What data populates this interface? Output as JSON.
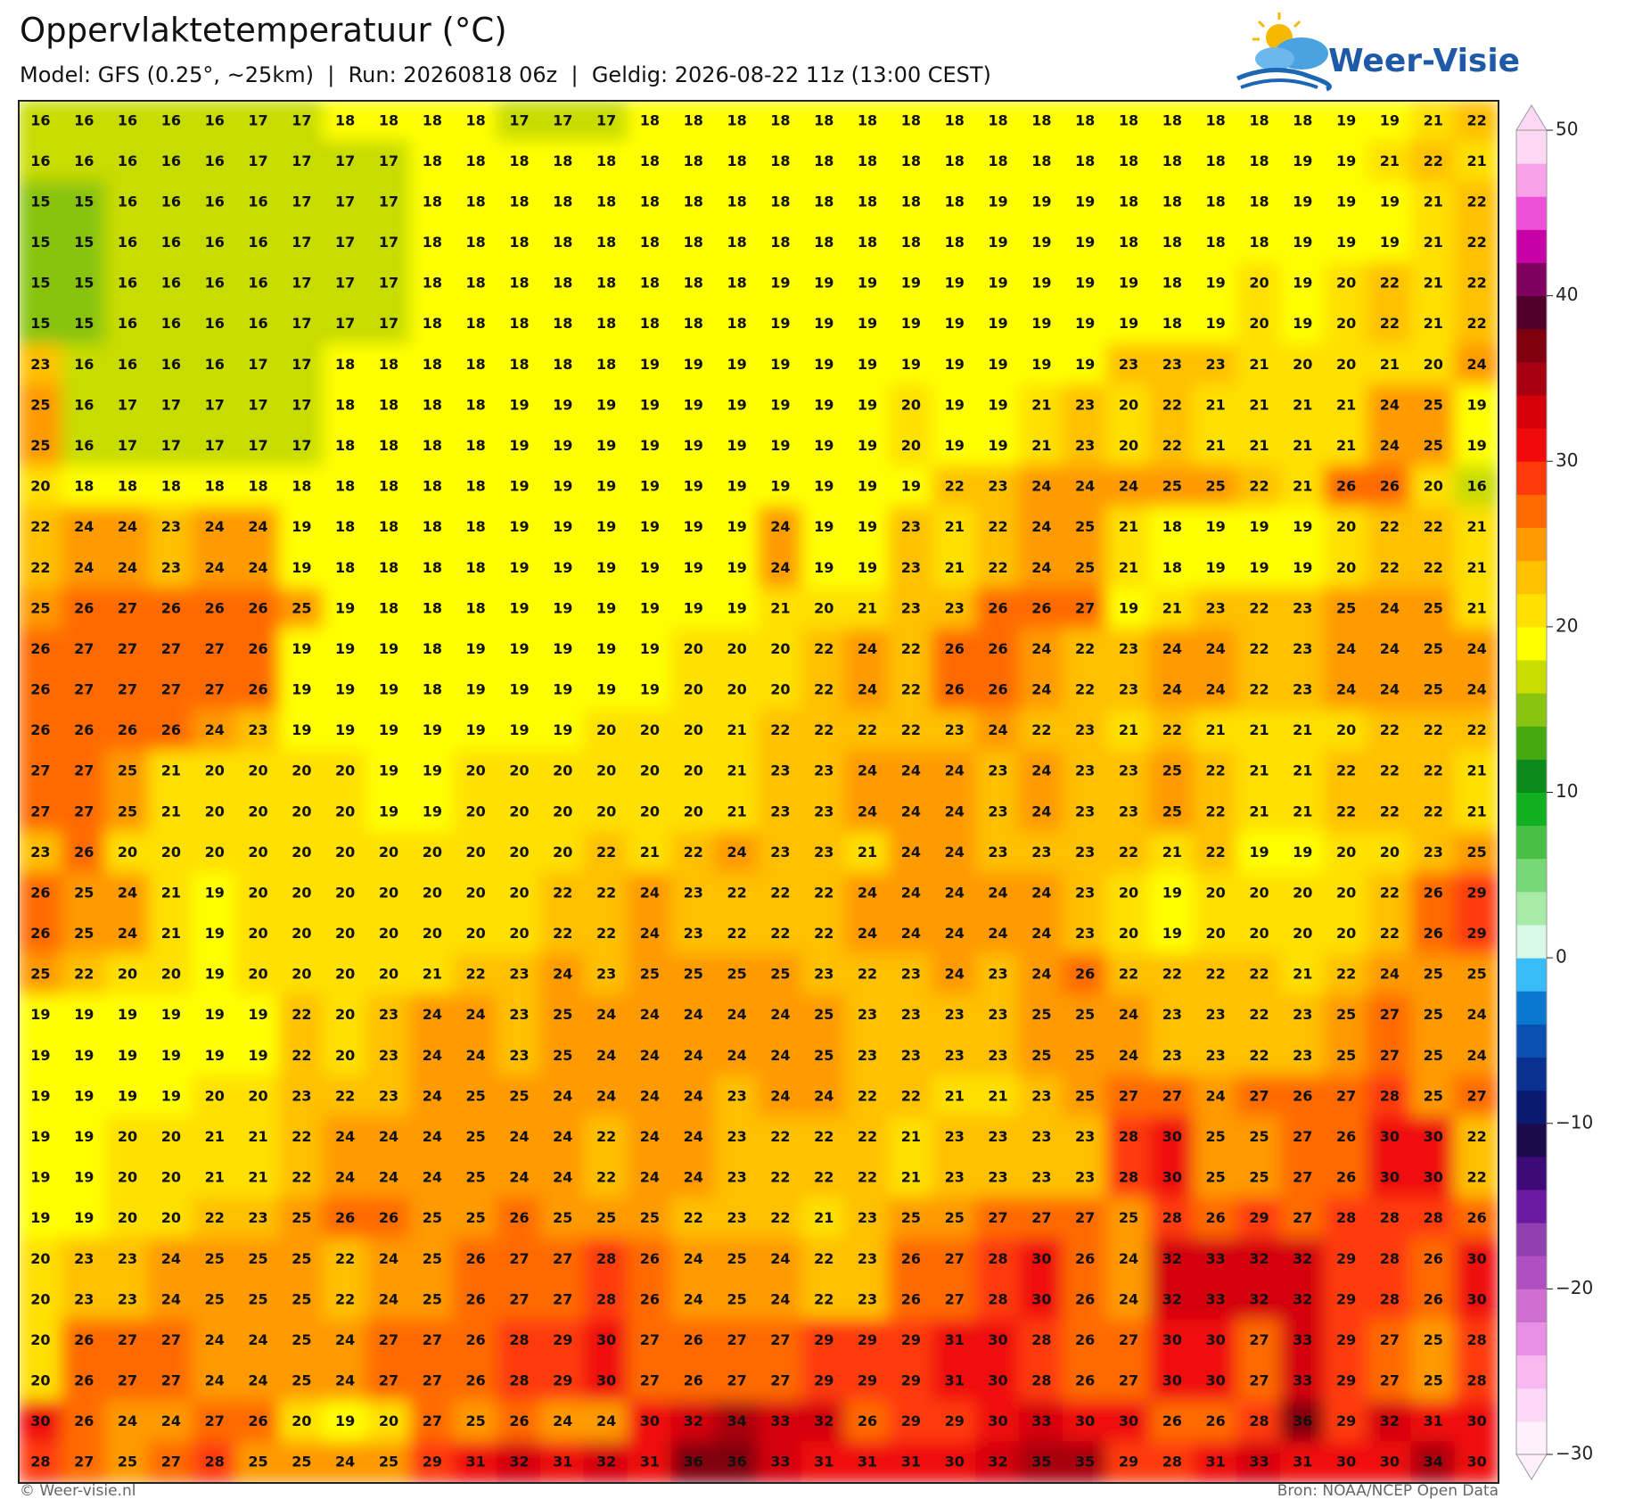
{
  "header": {
    "title": "Oppervlaktetemperatuur (°C)",
    "subtitle": "Model: GFS (0.25°, ~25km)  |  Run: 20260818 06z  |  Geldig: 2026-08-22 11z (13:00 CEST)",
    "logo": "Weer-Visie"
  },
  "chart_data": {
    "type": "grid",
    "values": [
      [
        16,
        16,
        16,
        16,
        16,
        17,
        17,
        18,
        18,
        18,
        18,
        17,
        17,
        17,
        18,
        18,
        18,
        18,
        18,
        18,
        18,
        18,
        18,
        18,
        18,
        18,
        18,
        18,
        18,
        18,
        19,
        19,
        21,
        22
      ],
      [
        16,
        16,
        16,
        16,
        16,
        17,
        17,
        17,
        17,
        18,
        18,
        18,
        18,
        18,
        18,
        18,
        18,
        18,
        18,
        18,
        18,
        18,
        18,
        18,
        18,
        18,
        18,
        18,
        18,
        19,
        19,
        21,
        22,
        21
      ],
      [
        15,
        15,
        16,
        16,
        16,
        16,
        17,
        17,
        17,
        18,
        18,
        18,
        18,
        18,
        18,
        18,
        18,
        18,
        18,
        18,
        18,
        18,
        19,
        19,
        19,
        18,
        18,
        18,
        18,
        19,
        19,
        19,
        21,
        22
      ],
      [
        15,
        15,
        16,
        16,
        16,
        16,
        17,
        17,
        17,
        18,
        18,
        18,
        18,
        18,
        18,
        18,
        18,
        18,
        18,
        18,
        18,
        18,
        19,
        19,
        19,
        18,
        18,
        18,
        18,
        19,
        19,
        19,
        21,
        22
      ],
      [
        15,
        15,
        16,
        16,
        16,
        16,
        17,
        17,
        17,
        18,
        18,
        18,
        18,
        18,
        18,
        18,
        18,
        19,
        19,
        19,
        19,
        19,
        19,
        19,
        19,
        19,
        18,
        19,
        20,
        19,
        20,
        22,
        21,
        22
      ],
      [
        15,
        15,
        16,
        16,
        16,
        16,
        17,
        17,
        17,
        18,
        18,
        18,
        18,
        18,
        18,
        18,
        18,
        19,
        19,
        19,
        19,
        19,
        19,
        19,
        19,
        19,
        18,
        19,
        20,
        19,
        20,
        22,
        21,
        22
      ],
      [
        23,
        16,
        16,
        16,
        16,
        17,
        17,
        18,
        18,
        18,
        18,
        18,
        18,
        18,
        19,
        19,
        19,
        19,
        19,
        19,
        19,
        19,
        19,
        19,
        19,
        23,
        23,
        23,
        21,
        20,
        20,
        21,
        20,
        24
      ],
      [
        25,
        16,
        17,
        17,
        17,
        17,
        17,
        18,
        18,
        18,
        18,
        19,
        19,
        19,
        19,
        19,
        19,
        19,
        19,
        19,
        20,
        19,
        19,
        21,
        23,
        20,
        22,
        21,
        21,
        21,
        21,
        24,
        25,
        19
      ],
      [
        25,
        16,
        17,
        17,
        17,
        17,
        17,
        18,
        18,
        18,
        18,
        19,
        19,
        19,
        19,
        19,
        19,
        19,
        19,
        19,
        20,
        19,
        19,
        21,
        23,
        20,
        22,
        21,
        21,
        21,
        21,
        24,
        25,
        19
      ],
      [
        20,
        18,
        18,
        18,
        18,
        18,
        18,
        18,
        18,
        18,
        18,
        19,
        19,
        19,
        19,
        19,
        19,
        19,
        19,
        19,
        19,
        22,
        23,
        24,
        24,
        24,
        25,
        25,
        22,
        21,
        26,
        26,
        20,
        16
      ],
      [
        22,
        24,
        24,
        23,
        24,
        24,
        19,
        18,
        18,
        18,
        18,
        19,
        19,
        19,
        19,
        19,
        19,
        24,
        19,
        19,
        23,
        21,
        22,
        24,
        25,
        21,
        18,
        19,
        19,
        19,
        20,
        22,
        22,
        21
      ],
      [
        22,
        24,
        24,
        23,
        24,
        24,
        19,
        18,
        18,
        18,
        18,
        19,
        19,
        19,
        19,
        19,
        19,
        24,
        19,
        19,
        23,
        21,
        22,
        24,
        25,
        21,
        18,
        19,
        19,
        19,
        20,
        22,
        22,
        21
      ],
      [
        25,
        26,
        27,
        26,
        26,
        26,
        25,
        19,
        18,
        18,
        18,
        19,
        19,
        19,
        19,
        19,
        19,
        21,
        20,
        21,
        23,
        23,
        26,
        26,
        27,
        19,
        21,
        23,
        22,
        23,
        25,
        24,
        25,
        21
      ],
      [
        26,
        27,
        27,
        27,
        27,
        26,
        19,
        19,
        19,
        18,
        19,
        19,
        19,
        19,
        19,
        20,
        20,
        20,
        22,
        24,
        22,
        26,
        26,
        24,
        22,
        23,
        24,
        24,
        22,
        23,
        24,
        24,
        25,
        24
      ],
      [
        26,
        27,
        27,
        27,
        27,
        26,
        19,
        19,
        19,
        18,
        19,
        19,
        19,
        19,
        19,
        20,
        20,
        20,
        22,
        24,
        22,
        26,
        26,
        24,
        22,
        23,
        24,
        24,
        22,
        23,
        24,
        24,
        25,
        24
      ],
      [
        26,
        26,
        26,
        26,
        24,
        23,
        19,
        19,
        19,
        19,
        19,
        19,
        19,
        20,
        20,
        20,
        21,
        22,
        22,
        22,
        22,
        23,
        24,
        22,
        23,
        21,
        22,
        21,
        21,
        21,
        20,
        22,
        22,
        22
      ],
      [
        27,
        27,
        25,
        21,
        20,
        20,
        20,
        20,
        19,
        19,
        20,
        20,
        20,
        20,
        20,
        20,
        21,
        23,
        23,
        24,
        24,
        24,
        23,
        24,
        23,
        23,
        25,
        22,
        21,
        21,
        22,
        22,
        22,
        21
      ],
      [
        27,
        27,
        25,
        21,
        20,
        20,
        20,
        20,
        19,
        19,
        20,
        20,
        20,
        20,
        20,
        20,
        21,
        23,
        23,
        24,
        24,
        24,
        23,
        24,
        23,
        23,
        25,
        22,
        21,
        21,
        22,
        22,
        22,
        21
      ],
      [
        23,
        26,
        20,
        20,
        20,
        20,
        20,
        20,
        20,
        20,
        20,
        20,
        20,
        22,
        21,
        22,
        24,
        23,
        23,
        21,
        24,
        24,
        23,
        23,
        23,
        22,
        21,
        22,
        19,
        19,
        20,
        20,
        23,
        25
      ],
      [
        26,
        25,
        24,
        21,
        19,
        20,
        20,
        20,
        20,
        20,
        20,
        20,
        22,
        22,
        24,
        23,
        22,
        22,
        22,
        24,
        24,
        24,
        24,
        24,
        23,
        20,
        19,
        20,
        20,
        20,
        20,
        22,
        26,
        29
      ],
      [
        26,
        25,
        24,
        21,
        19,
        20,
        20,
        20,
        20,
        20,
        20,
        20,
        22,
        22,
        24,
        23,
        22,
        22,
        22,
        24,
        24,
        24,
        24,
        24,
        23,
        20,
        19,
        20,
        20,
        20,
        20,
        22,
        26,
        29
      ],
      [
        25,
        22,
        20,
        20,
        19,
        20,
        20,
        20,
        20,
        21,
        22,
        23,
        24,
        23,
        25,
        25,
        25,
        25,
        23,
        22,
        23,
        24,
        23,
        24,
        26,
        22,
        22,
        22,
        22,
        21,
        22,
        24,
        25,
        25
      ],
      [
        19,
        19,
        19,
        19,
        19,
        19,
        22,
        20,
        23,
        24,
        24,
        23,
        25,
        24,
        24,
        24,
        24,
        24,
        25,
        23,
        23,
        23,
        23,
        25,
        25,
        24,
        23,
        23,
        22,
        23,
        25,
        27,
        25,
        24
      ],
      [
        19,
        19,
        19,
        19,
        19,
        19,
        22,
        20,
        23,
        24,
        24,
        23,
        25,
        24,
        24,
        24,
        24,
        24,
        25,
        23,
        23,
        23,
        23,
        25,
        25,
        24,
        23,
        23,
        22,
        23,
        25,
        27,
        25,
        24
      ],
      [
        19,
        19,
        19,
        19,
        20,
        20,
        23,
        22,
        23,
        24,
        25,
        25,
        24,
        24,
        24,
        24,
        23,
        24,
        24,
        22,
        22,
        21,
        21,
        23,
        25,
        27,
        27,
        24,
        27,
        26,
        27,
        28,
        25,
        27
      ],
      [
        19,
        19,
        20,
        20,
        21,
        21,
        22,
        24,
        24,
        24,
        25,
        24,
        24,
        22,
        24,
        24,
        23,
        22,
        22,
        22,
        21,
        23,
        23,
        23,
        23,
        28,
        30,
        25,
        25,
        27,
        26,
        30,
        30,
        22
      ],
      [
        19,
        19,
        20,
        20,
        21,
        21,
        22,
        24,
        24,
        24,
        25,
        24,
        24,
        22,
        24,
        24,
        23,
        22,
        22,
        22,
        21,
        23,
        23,
        23,
        23,
        28,
        30,
        25,
        25,
        27,
        26,
        30,
        30,
        22
      ],
      [
        19,
        19,
        20,
        20,
        22,
        23,
        25,
        26,
        26,
        25,
        25,
        26,
        25,
        25,
        25,
        22,
        23,
        22,
        21,
        23,
        25,
        25,
        27,
        27,
        27,
        25,
        28,
        26,
        29,
        27,
        28,
        28,
        28,
        26
      ],
      [
        20,
        23,
        23,
        24,
        25,
        25,
        25,
        22,
        24,
        25,
        26,
        27,
        27,
        28,
        26,
        24,
        25,
        24,
        22,
        23,
        26,
        27,
        28,
        30,
        26,
        24,
        32,
        33,
        32,
        32,
        29,
        28,
        26,
        30
      ],
      [
        20,
        23,
        23,
        24,
        25,
        25,
        25,
        22,
        24,
        25,
        26,
        27,
        27,
        28,
        26,
        24,
        25,
        24,
        22,
        23,
        26,
        27,
        28,
        30,
        26,
        24,
        32,
        33,
        32,
        32,
        29,
        28,
        26,
        30
      ],
      [
        20,
        26,
        27,
        27,
        24,
        24,
        25,
        24,
        27,
        27,
        26,
        28,
        29,
        30,
        27,
        26,
        27,
        27,
        29,
        29,
        29,
        31,
        30,
        28,
        26,
        27,
        30,
        30,
        27,
        33,
        29,
        27,
        25,
        28
      ],
      [
        20,
        26,
        27,
        27,
        24,
        24,
        25,
        24,
        27,
        27,
        26,
        28,
        29,
        30,
        27,
        26,
        27,
        27,
        29,
        29,
        29,
        31,
        30,
        28,
        26,
        27,
        30,
        30,
        27,
        33,
        29,
        27,
        25,
        28
      ],
      [
        30,
        26,
        24,
        24,
        27,
        26,
        20,
        19,
        20,
        27,
        25,
        26,
        24,
        24,
        30,
        32,
        34,
        33,
        32,
        26,
        29,
        29,
        30,
        33,
        30,
        30,
        26,
        26,
        28,
        36,
        29,
        32,
        31,
        30
      ],
      [
        28,
        27,
        25,
        27,
        28,
        25,
        25,
        24,
        25,
        29,
        31,
        32,
        31,
        32,
        31,
        36,
        36,
        33,
        31,
        31,
        31,
        30,
        32,
        35,
        35,
        29,
        28,
        31,
        33,
        31,
        30,
        30,
        34,
        30
      ]
    ],
    "colorbar": {
      "lim": [
        -30,
        50
      ],
      "ticks": [
        50,
        40,
        30,
        20,
        10,
        0,
        {
          "value": -10,
          "label": "−10"
        },
        {
          "value": -20,
          "label": "−20"
        },
        {
          "value": -30,
          "label": "−30"
        }
      ],
      "colors": [
        "#fdf0fc",
        "#fcd8f6",
        "#f8b8f0",
        "#e890e4",
        "#cf70d0",
        "#b050c0",
        "#9040b0",
        "#6a1aa0",
        "#3d0a78",
        "#1c0a4c",
        "#0a1a70",
        "#0a3090",
        "#0a50b0",
        "#0a78d0",
        "#38bdf8",
        "#d8f8e8",
        "#a8eaa8",
        "#78d878",
        "#48c048",
        "#10b020",
        "#0c8a1c",
        "#44aa10",
        "#88c410",
        "#c8dc00",
        "#ffff00",
        "#ffe000",
        "#ffc000",
        "#ff9a00",
        "#ff6a00",
        "#ff3a0a",
        "#f00a0a",
        "#d4000a",
        "#a80010",
        "#800010",
        "#50002a",
        "#800060",
        "#c800a8",
        "#f050d8",
        "#f8a0e8",
        "#fcd8f4"
      ]
    }
  },
  "footer": {
    "left": "© Weer-visie.nl",
    "right": "Bron: NOAA/NCEP Open Data"
  }
}
